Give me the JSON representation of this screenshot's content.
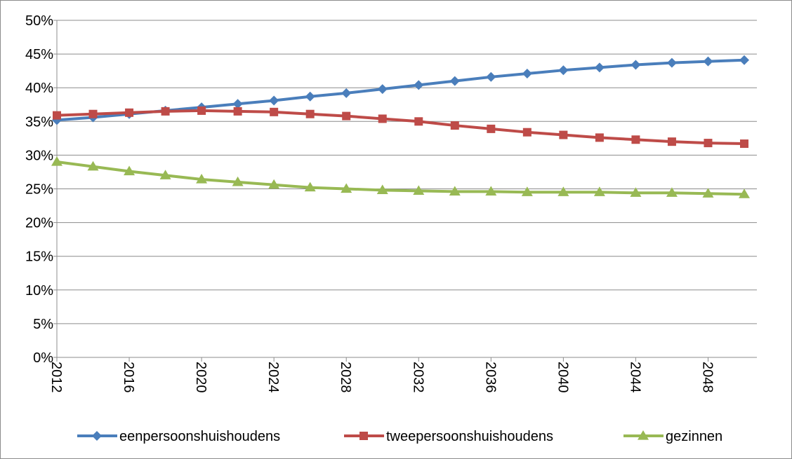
{
  "chart_data": {
    "type": "line",
    "title": "",
    "xlabel": "",
    "ylabel": "",
    "ylim": [
      0,
      0.5
    ],
    "y_ticks": [
      "0%",
      "5%",
      "10%",
      "15%",
      "20%",
      "25%",
      "30%",
      "35%",
      "40%",
      "45%",
      "50%"
    ],
    "x": [
      2012,
      2014,
      2016,
      2018,
      2020,
      2022,
      2024,
      2026,
      2028,
      2030,
      2032,
      2034,
      2036,
      2038,
      2040,
      2042,
      2044,
      2046,
      2048,
      2050
    ],
    "x_tick_labels": [
      "2012",
      "2016",
      "2020",
      "2024",
      "2028",
      "2032",
      "2036",
      "2040",
      "2044",
      "2048"
    ],
    "grid": true,
    "legend_position": "bottom",
    "series": [
      {
        "name": "eenpersoonshuishoudens",
        "color": "#4a7ebb",
        "marker": "diamond",
        "values": [
          0.352,
          0.356,
          0.361,
          0.366,
          0.371,
          0.376,
          0.381,
          0.387,
          0.392,
          0.398,
          0.404,
          0.41,
          0.416,
          0.421,
          0.426,
          0.43,
          0.434,
          0.437,
          0.439,
          0.441
        ]
      },
      {
        "name": "tweepersoonshuishoudens",
        "color": "#be4b48",
        "marker": "square",
        "values": [
          0.359,
          0.361,
          0.363,
          0.365,
          0.366,
          0.365,
          0.364,
          0.361,
          0.358,
          0.354,
          0.35,
          0.344,
          0.339,
          0.334,
          0.33,
          0.326,
          0.323,
          0.32,
          0.318,
          0.317
        ]
      },
      {
        "name": "gezinnen",
        "color": "#98b954",
        "marker": "triangle",
        "values": [
          0.29,
          0.283,
          0.276,
          0.27,
          0.264,
          0.26,
          0.256,
          0.252,
          0.25,
          0.248,
          0.247,
          0.246,
          0.246,
          0.245,
          0.245,
          0.245,
          0.244,
          0.244,
          0.243,
          0.242
        ]
      }
    ]
  }
}
